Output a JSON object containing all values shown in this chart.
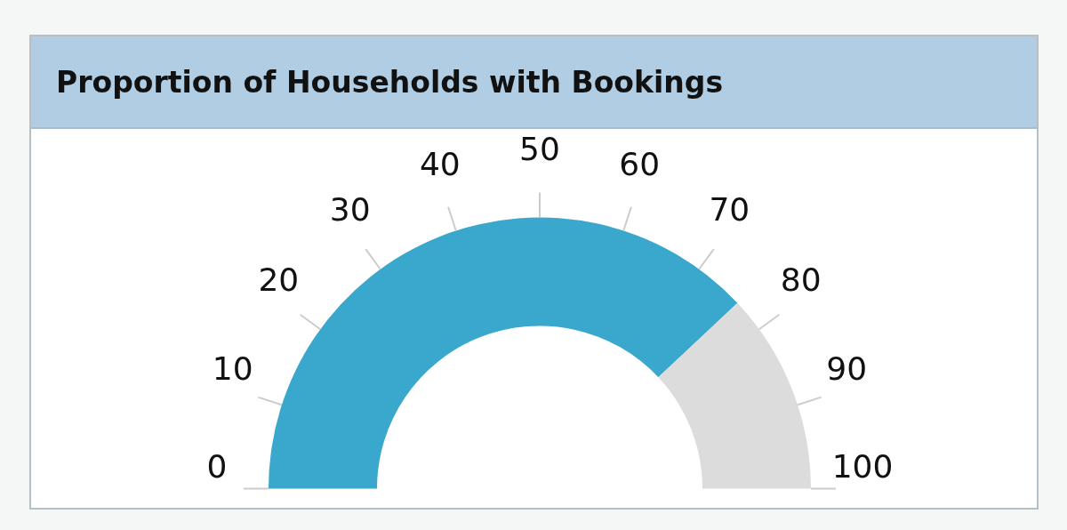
{
  "chart_data": {
    "type": "donut",
    "title": "Proportion of Households with Bookings",
    "categories": [
      null,
      null
    ],
    "values": [
      76,
      24
    ],
    "colors": [
      "#3aa7cc",
      "#dcdcdc"
    ],
    "annotations": [
      "0",
      "10",
      "20",
      "30",
      "40",
      "50",
      "60",
      "70",
      "80",
      "90",
      "100"
    ]
  }
}
